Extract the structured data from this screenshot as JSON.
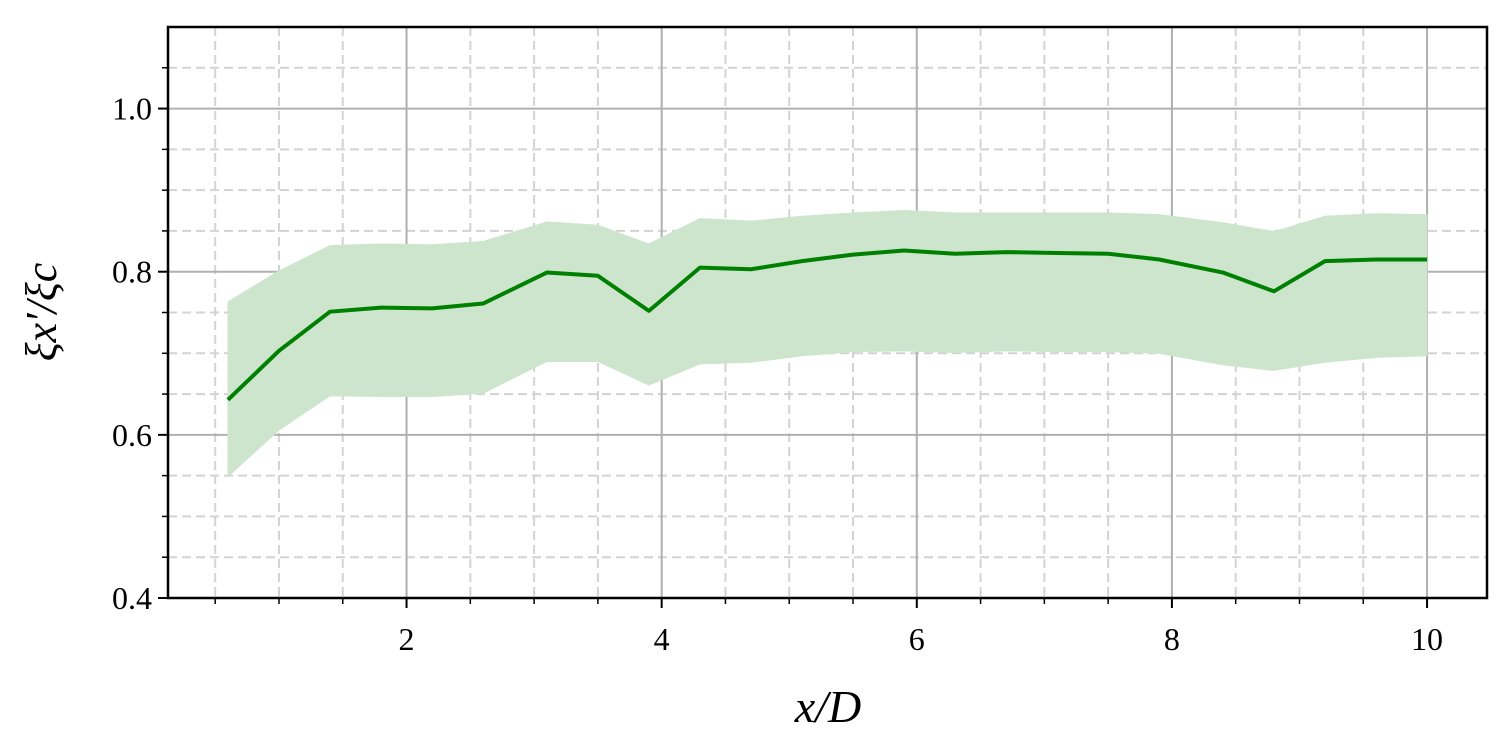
{
  "chart_data": {
    "type": "line",
    "xlabel": "x/D",
    "ylabel": "ξx′/ξc",
    "x": [
      0.6,
      1.0,
      1.4,
      1.8,
      2.2,
      2.6,
      3.1,
      3.5,
      3.9,
      4.3,
      4.7,
      5.1,
      5.5,
      5.9,
      6.3,
      6.7,
      7.1,
      7.5,
      7.9,
      8.4,
      8.8,
      9.2,
      9.6,
      10.0
    ],
    "values": [
      0.643,
      0.703,
      0.751,
      0.756,
      0.755,
      0.761,
      0.799,
      0.795,
      0.752,
      0.805,
      0.803,
      0.813,
      0.821,
      0.826,
      0.822,
      0.824,
      0.823,
      0.822,
      0.815,
      0.799,
      0.776,
      0.813,
      0.815,
      0.815
    ],
    "upper": [
      0.763,
      0.801,
      0.832,
      0.834,
      0.833,
      0.837,
      0.861,
      0.857,
      0.834,
      0.865,
      0.862,
      0.868,
      0.872,
      0.875,
      0.872,
      0.872,
      0.872,
      0.872,
      0.87,
      0.86,
      0.849,
      0.868,
      0.871,
      0.87
    ],
    "lower": [
      0.549,
      0.606,
      0.648,
      0.647,
      0.647,
      0.651,
      0.69,
      0.69,
      0.661,
      0.687,
      0.689,
      0.697,
      0.702,
      0.703,
      0.701,
      0.703,
      0.702,
      0.702,
      0.7,
      0.686,
      0.679,
      0.689,
      0.695,
      0.697
    ],
    "color": "#008000",
    "band_color": "#cde5cd",
    "xlim": [
      0.13,
      10.47
    ],
    "ylim": [
      0.4,
      1.1
    ],
    "xticks": [
      2,
      4,
      6,
      8,
      10
    ],
    "yticks": [
      0.4,
      0.6,
      0.8,
      {
        "value": 1,
        "label": "1.0"
      }
    ],
    "xminor": [
      0.5,
      1,
      1.5,
      2.5,
      3,
      3.5,
      4.5,
      5,
      5.5,
      6.5,
      7,
      7.5,
      8.5,
      9,
      9.5
    ],
    "yminor": [
      0.45,
      0.5,
      0.55,
      0.65,
      0.7,
      0.75,
      0.85,
      0.9,
      0.95,
      1.05
    ],
    "grid": true
  }
}
